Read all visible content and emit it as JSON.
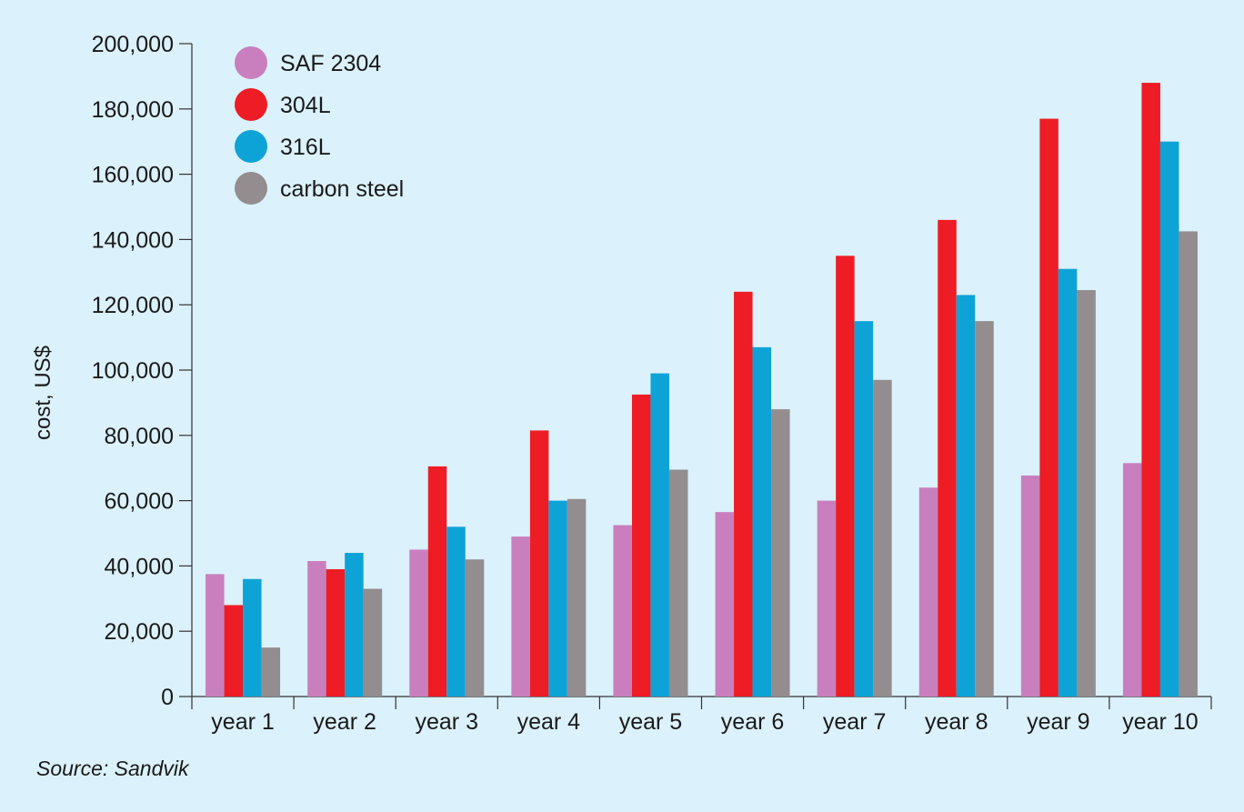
{
  "source_note": "Source: Sandvik",
  "chart_data": {
    "type": "bar",
    "ylabel": "cost, US$",
    "xlabel": "",
    "ylim": [
      0,
      200000
    ],
    "y_ticks": [
      0,
      20000,
      40000,
      60000,
      80000,
      100000,
      120000,
      140000,
      160000,
      180000,
      200000
    ],
    "y_tick_labels": [
      "0",
      "20,000",
      "40,000",
      "60,000",
      "80,000",
      "100,000",
      "120,000",
      "140,000",
      "160,000",
      "180,000",
      "200,000"
    ],
    "categories": [
      "year 1",
      "year 2",
      "year 3",
      "year 4",
      "year 5",
      "year 6",
      "year 7",
      "year 8",
      "year 9",
      "year 10"
    ],
    "series": [
      {
        "name": "SAF 2304",
        "color": "#c97fbe",
        "values": [
          37500,
          41500,
          45000,
          49000,
          52500,
          56500,
          60000,
          64000,
          67700,
          71500
        ]
      },
      {
        "name": "304L",
        "color": "#ee1c25",
        "values": [
          28000,
          39000,
          70500,
          81500,
          92500,
          124000,
          135000,
          146000,
          177000,
          188000
        ]
      },
      {
        "name": "316L",
        "color": "#0ea3d6",
        "values": [
          36000,
          44000,
          52000,
          60000,
          99000,
          107000,
          115000,
          123000,
          131000,
          170000
        ]
      },
      {
        "name": "carbon steel",
        "color": "#938d8f",
        "values": [
          15000,
          33000,
          42000,
          60500,
          69500,
          88000,
          97000,
          115000,
          124500,
          142500
        ]
      }
    ],
    "legend_position": "top-left",
    "grid": false
  }
}
